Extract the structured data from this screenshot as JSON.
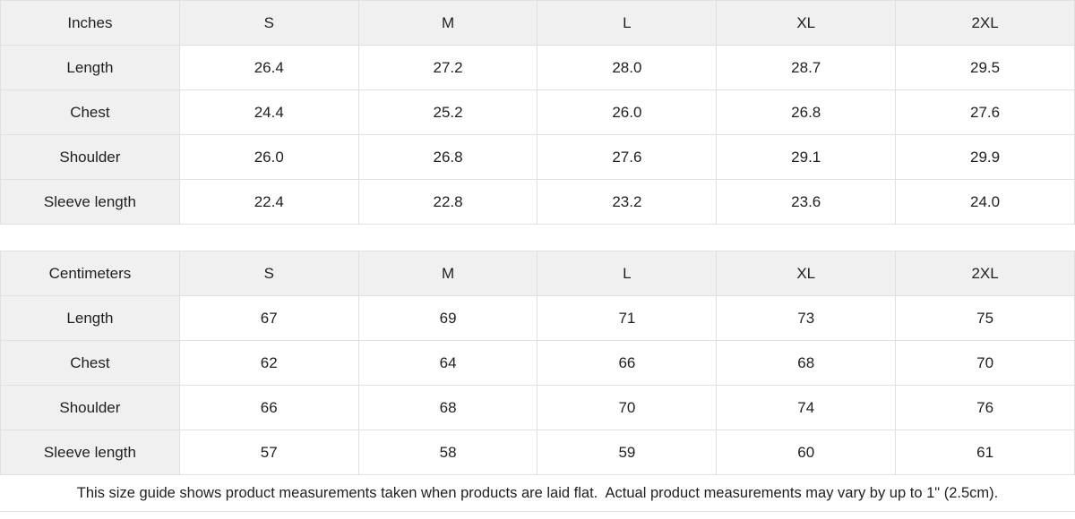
{
  "chart_data": [
    {
      "type": "table",
      "title": "Inches",
      "columns": [
        "Inches",
        "S",
        "M",
        "L",
        "XL",
        "2XL"
      ],
      "rows": [
        [
          "Length",
          "26.4",
          "27.2",
          "28.0",
          "28.7",
          "29.5"
        ],
        [
          "Chest",
          "24.4",
          "25.2",
          "26.0",
          "26.8",
          "27.6"
        ],
        [
          "Shoulder",
          "26.0",
          "26.8",
          "27.6",
          "29.1",
          "29.9"
        ],
        [
          "Sleeve length",
          "22.4",
          "22.8",
          "23.2",
          "23.6",
          "24.0"
        ]
      ]
    },
    {
      "type": "table",
      "title": "Centimeters",
      "columns": [
        "Centimeters",
        "S",
        "M",
        "L",
        "XL",
        "2XL"
      ],
      "rows": [
        [
          "Length",
          "67",
          "69",
          "71",
          "73",
          "75"
        ],
        [
          "Chest",
          "62",
          "64",
          "66",
          "68",
          "70"
        ],
        [
          "Shoulder",
          "66",
          "68",
          "70",
          "74",
          "76"
        ],
        [
          "Sleeve length",
          "57",
          "58",
          "59",
          "60",
          "61"
        ]
      ]
    }
  ],
  "footer": {
    "note": "This size guide shows product measurements taken when products are laid flat.  Actual product measurements may vary by up to 1\" (2.5cm)."
  },
  "colors": {
    "header_bg": "#f0f0f0",
    "border": "#e0e0e0",
    "text": "#1f1f1f",
    "background": "#ffffff"
  }
}
